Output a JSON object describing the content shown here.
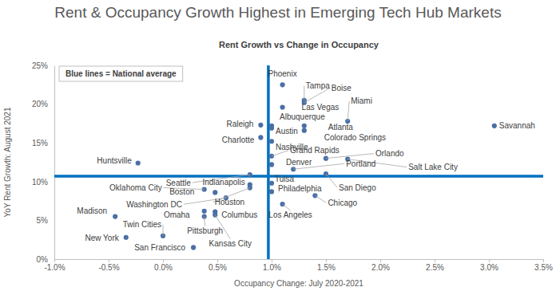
{
  "chart_data": {
    "type": "scatter",
    "title": "Rent & Occupancy Growth Highest in Emerging Tech Hub Markets",
    "subtitle": "Rent Growth vs Change in Occupancy",
    "x_label": "Occupancy Change: July 2020-2021",
    "y_label": "YoY Rent Growth: August 2021",
    "labels": [
      "Phoenix",
      "Tampa",
      "Boise",
      "Las Vegas",
      "Miami",
      "Albuquerque",
      "Raleigh",
      "Austin",
      "Atlanta",
      "Colorado Springs",
      "Charlotte",
      "Nashville",
      "Grand Rapids",
      "Orlando",
      "Denver",
      "Portland",
      "Salt Lake City",
      "Savannah",
      "Huntsville",
      "Seattle",
      "Indianapolis",
      "Tulsa",
      "Philadelphia",
      "San Diego",
      "Oklahoma City",
      "Boston",
      "Houston",
      "Washington DC",
      "Chicago",
      "Omaha",
      "Columbus",
      "Los Angeles",
      "Madison",
      "Pittsburgh",
      "Twin Cities",
      "New York",
      "Kansas City",
      "San Francisco"
    ],
    "x": [
      1.1,
      1.3,
      1.3,
      1.1,
      1.7,
      1.0,
      0.9,
      1.0,
      1.3,
      1.3,
      0.9,
      1.0,
      1.0,
      1.5,
      1.0,
      1.2,
      1.7,
      3.05,
      -0.23,
      0.8,
      0.8,
      1.0,
      1.0,
      1.5,
      0.38,
      0.48,
      0.8,
      0.58,
      1.4,
      0.38,
      0.48,
      1.1,
      -0.44,
      0.38,
      0.0,
      -0.34,
      0.48,
      0.28
    ],
    "values": [
      22.5,
      20.5,
      20.2,
      19.6,
      17.8,
      17.2,
      17.3,
      16.9,
      17.2,
      16.6,
      15.7,
      15.2,
      13.3,
      13.0,
      12.2,
      11.6,
      12.9,
      17.2,
      12.4,
      10.9,
      9.6,
      9.8,
      8.7,
      11.0,
      9.0,
      8.6,
      9.2,
      7.9,
      8.2,
      6.2,
      6.1,
      7.1,
      5.5,
      5.5,
      3.0,
      2.8,
      5.7,
      1.5
    ],
    "color": "#4a6fa5",
    "marker": "circle",
    "xlim": [
      -1.0,
      3.5
    ],
    "ylim": [
      0,
      25
    ],
    "xticks": [
      {
        "value": -1.0,
        "label": "-1.0%"
      },
      {
        "value": -0.5,
        "label": "-0.5%"
      },
      {
        "value": 0.0,
        "label": "0.0%"
      },
      {
        "value": 0.5,
        "label": "0.5%"
      },
      {
        "value": 1.0,
        "label": "1.0%"
      },
      {
        "value": 1.5,
        "label": "1.5%"
      },
      {
        "value": 2.0,
        "label": "2.0%"
      },
      {
        "value": 2.5,
        "label": "2.5%"
      },
      {
        "value": 3.0,
        "label": "3.0%"
      },
      {
        "value": 3.5,
        "label": "3.5%"
      }
    ],
    "yticks": [
      {
        "value": 0,
        "label": "0%"
      },
      {
        "value": 5,
        "label": "5%"
      },
      {
        "value": 10,
        "label": "10%"
      },
      {
        "value": 15,
        "label": "15%"
      },
      {
        "value": 20,
        "label": "20%"
      },
      {
        "value": 25,
        "label": "25%"
      }
    ],
    "grid": false,
    "reference_lines": {
      "x": 0.97,
      "y": 10.7,
      "color": "#0070c0",
      "label": "Blue lines = National average"
    }
  }
}
